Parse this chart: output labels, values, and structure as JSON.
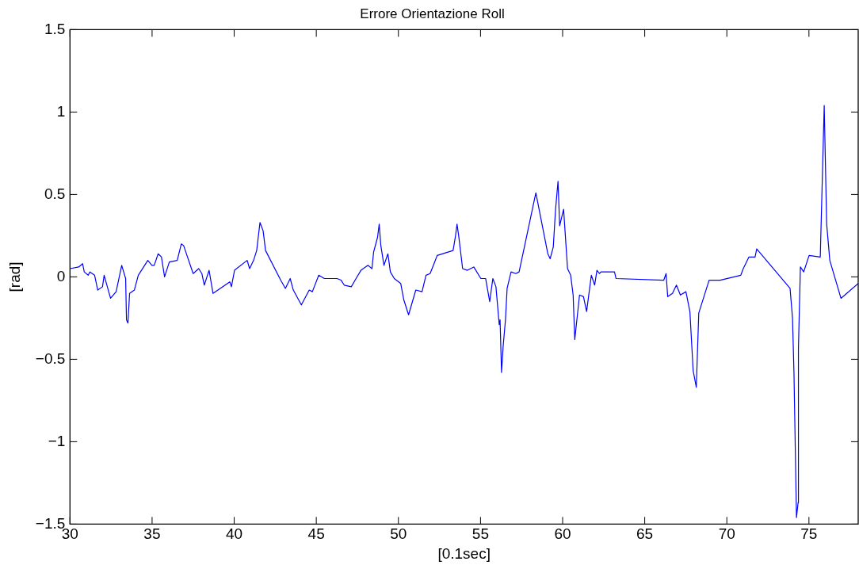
{
  "chart_data": {
    "type": "line",
    "title": "Errore Orientazione Roll",
    "xlabel": "[0.1sec]",
    "ylabel": "[rad]",
    "xlim": [
      30,
      78
    ],
    "xticks": [
      30,
      35,
      40,
      45,
      50,
      55,
      60,
      65,
      70,
      75
    ],
    "ylim": [
      -1.5,
      1.5
    ],
    "yticks": [
      1.5,
      1,
      0.5,
      0,
      {
        "value": -0.5,
        "label": "−0.5"
      },
      {
        "value": -1,
        "label": "−1"
      },
      {
        "value": -1.5,
        "label": "−1.5"
      }
    ],
    "grid": false,
    "legend": false,
    "marker": "none",
    "line_style": "solid",
    "series": [
      {
        "color": "#0000ff",
        "x": [
          30.0,
          30.53,
          30.77,
          30.87,
          31.11,
          31.21,
          31.5,
          31.69,
          31.98,
          32.08,
          32.47,
          32.81,
          33.15,
          33.39,
          33.44,
          33.53,
          33.63,
          33.92,
          34.16,
          34.74,
          34.99,
          35.13,
          35.37,
          35.57,
          35.76,
          36.05,
          36.53,
          36.78,
          36.92,
          37.5,
          37.84,
          38.03,
          38.18,
          38.47,
          38.71,
          39.73,
          39.83,
          40.02,
          40.79,
          40.94,
          41.18,
          41.37,
          41.57,
          41.76,
          41.91,
          42.83,
          43.12,
          43.41,
          43.6,
          44.09,
          44.57,
          44.76,
          45.15,
          45.49,
          46.26,
          46.51,
          46.7,
          47.13,
          47.42,
          47.72,
          48.15,
          48.39,
          48.49,
          48.73,
          48.83,
          48.93,
          49.12,
          49.36,
          49.51,
          49.75,
          50.14,
          50.33,
          50.62,
          51.06,
          51.44,
          51.68,
          51.93,
          52.17,
          52.36,
          53.33,
          53.48,
          53.57,
          53.67,
          53.91,
          54.2,
          54.59,
          55.02,
          55.31,
          55.56,
          55.75,
          55.94,
          56.14,
          56.19,
          56.28,
          56.38,
          56.52,
          56.62,
          56.86,
          57.15,
          57.35,
          58.37,
          59.1,
          59.24,
          59.43,
          59.57,
          59.72,
          59.82,
          60.06,
          60.3,
          60.49,
          60.64,
          60.74,
          61.03,
          61.27,
          61.46,
          61.75,
          61.95,
          62.09,
          62.24,
          62.33,
          63.16,
          63.25,
          66.16,
          66.3,
          66.4,
          66.69,
          66.93,
          67.17,
          67.51,
          67.75,
          67.95,
          68.14,
          68.29,
          68.92,
          69.59,
          70.85,
          71.0,
          71.34,
          71.72,
          71.82,
          73.85,
          74.0,
          74.09,
          74.24,
          74.34,
          74.36,
          74.48,
          74.68,
          75.01,
          75.69,
          75.93,
          76.08,
          76.27,
          76.95,
          78.0
        ],
        "values": [
          0.05,
          0.06,
          0.08,
          0.03,
          0.01,
          0.03,
          0.01,
          -0.08,
          -0.06,
          0.01,
          -0.13,
          -0.09,
          0.07,
          -0.01,
          -0.26,
          -0.28,
          -0.1,
          -0.08,
          0.01,
          0.1,
          0.07,
          0.07,
          0.14,
          0.12,
          0.0,
          0.09,
          0.1,
          0.2,
          0.19,
          0.02,
          0.05,
          0.02,
          -0.05,
          0.04,
          -0.1,
          -0.03,
          -0.06,
          0.04,
          0.1,
          0.05,
          0.1,
          0.16,
          0.33,
          0.28,
          0.16,
          -0.02,
          -0.07,
          -0.01,
          -0.08,
          -0.17,
          -0.08,
          -0.09,
          0.01,
          -0.01,
          -0.01,
          -0.02,
          -0.05,
          -0.06,
          -0.01,
          0.04,
          0.07,
          0.05,
          0.15,
          0.24,
          0.32,
          0.19,
          0.07,
          0.14,
          0.03,
          -0.01,
          -0.04,
          -0.14,
          -0.23,
          -0.08,
          -0.09,
          0.01,
          0.02,
          0.08,
          0.13,
          0.16,
          0.25,
          0.32,
          0.25,
          0.05,
          0.04,
          0.06,
          -0.01,
          -0.01,
          -0.15,
          -0.01,
          -0.06,
          -0.29,
          -0.26,
          -0.58,
          -0.42,
          -0.26,
          -0.07,
          0.03,
          0.02,
          0.03,
          0.51,
          0.14,
          0.11,
          0.18,
          0.41,
          0.58,
          0.31,
          0.41,
          0.05,
          0.01,
          -0.11,
          -0.38,
          -0.11,
          -0.12,
          -0.21,
          0.01,
          -0.05,
          0.04,
          0.02,
          0.03,
          0.03,
          -0.01,
          -0.02,
          0.02,
          -0.12,
          -0.1,
          -0.05,
          -0.11,
          -0.09,
          -0.21,
          -0.57,
          -0.67,
          -0.22,
          -0.02,
          -0.02,
          0.01,
          0.05,
          0.12,
          0.12,
          0.17,
          -0.07,
          -0.25,
          -0.59,
          -1.46,
          -1.37,
          -0.43,
          0.06,
          0.03,
          0.13,
          0.12,
          1.04,
          0.32,
          0.1,
          -0.13,
          -0.04
        ]
      }
    ]
  }
}
